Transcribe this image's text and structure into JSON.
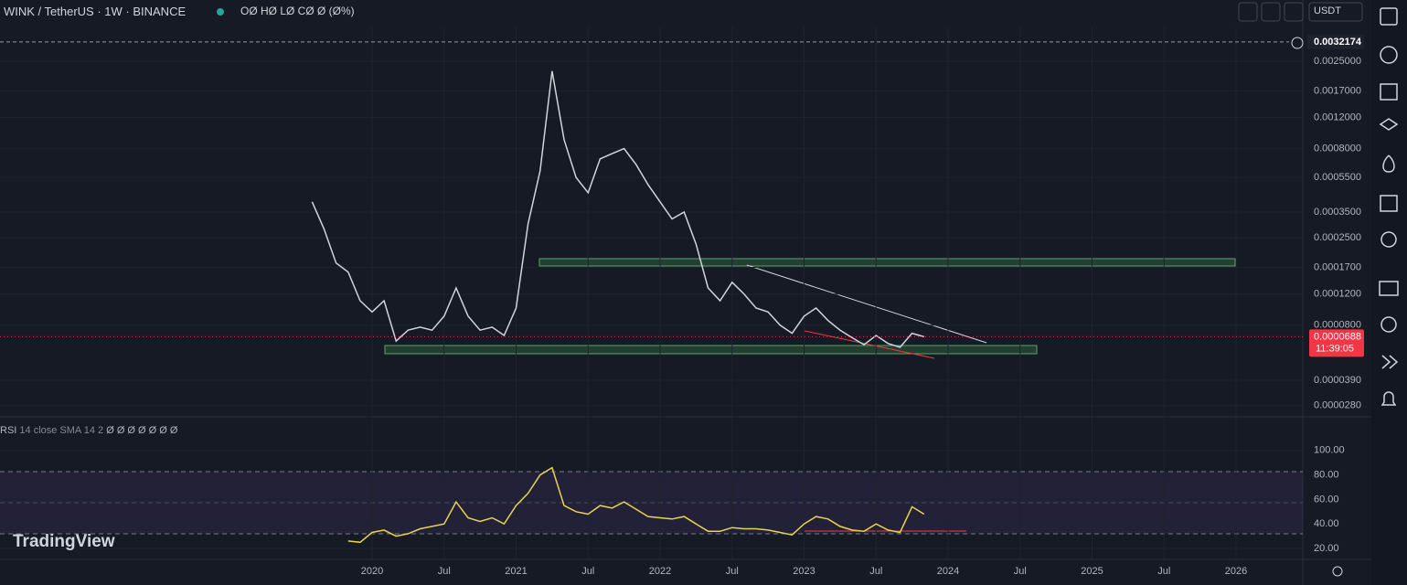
{
  "header": {
    "symbol": "WINK / TetherUS · 1W · BINANCE",
    "ohlc": "OØ HØ LØ CØ Ø (Ø%)",
    "currency": "USDT"
  },
  "chart_data": [
    {
      "type": "line",
      "title": "WINK / TetherUS · 1W · BINANCE",
      "log_scale": true,
      "color": "#d1d4dc",
      "x": [
        "2019-08",
        "2019-09",
        "2019-10",
        "2019-11",
        "2019-12",
        "2020-01",
        "2020-02",
        "2020-03",
        "2020-04",
        "2020-05",
        "2020-06",
        "2020-07",
        "2020-08",
        "2020-09",
        "2020-10",
        "2020-11",
        "2020-12",
        "2021-01",
        "2021-02",
        "2021-03",
        "2021-04",
        "2021-05",
        "2021-06",
        "2021-07",
        "2021-08",
        "2021-09",
        "2021-10",
        "2021-11",
        "2021-12",
        "2022-01",
        "2022-02",
        "2022-03",
        "2022-04",
        "2022-05",
        "2022-06",
        "2022-07",
        "2022-08",
        "2022-09",
        "2022-10",
        "2022-11",
        "2022-12",
        "2023-01",
        "2023-02",
        "2023-03",
        "2023-04",
        "2023-05",
        "2023-06",
        "2023-07",
        "2023-08",
        "2023-09",
        "2023-10",
        "2023-11"
      ],
      "values": [
        0.0004,
        0.00028,
        0.00018,
        0.00016,
        0.00011,
        9.5e-05,
        0.00011,
        6.5e-05,
        7.5e-05,
        7.8e-05,
        7.5e-05,
        9e-05,
        0.00013,
        9e-05,
        7.5e-05,
        7.8e-05,
        7e-05,
        0.0001,
        0.0003,
        0.0006,
        0.0022,
        0.0009,
        0.00055,
        0.00045,
        0.0007,
        0.00075,
        0.0008,
        0.00065,
        0.0005,
        0.0004,
        0.00032,
        0.00035,
        0.00023,
        0.00013,
        0.00011,
        0.00014,
        0.00012,
        0.0001,
        9.5e-05,
        8e-05,
        7.2e-05,
        9e-05,
        0.0001,
        8.5e-05,
        7.5e-05,
        6.8e-05,
        6.2e-05,
        7e-05,
        6.3e-05,
        6e-05,
        7.2e-05,
        6.88e-05
      ],
      "ylim": [
        2.45e-05,
        0.00389
      ],
      "yticks": [
        {
          "value": 0.0025,
          "label": "0.0025000"
        },
        {
          "value": 0.0017,
          "label": "0.0017000"
        },
        {
          "value": 0.0012,
          "label": "0.0012000"
        },
        {
          "value": 0.0008,
          "label": "0.0008000"
        },
        {
          "value": 0.00055,
          "label": "0.0005500"
        },
        {
          "value": 0.00035,
          "label": "0.0003500"
        },
        {
          "value": 0.00025,
          "label": "0.0002500"
        },
        {
          "value": 0.00017,
          "label": "0.0001700"
        },
        {
          "value": 0.00012,
          "label": "0.0001200"
        },
        {
          "value": 8e-05,
          "label": "0.0000800"
        },
        {
          "value": 3.9e-05,
          "label": "0.0000390"
        },
        {
          "value": 2.8e-05,
          "label": "0.0000280"
        }
      ],
      "xticks": [
        {
          "value": "2020-01",
          "label": "2020"
        },
        {
          "value": "2020-07",
          "label": "Jul"
        },
        {
          "value": "2021-01",
          "label": "2021"
        },
        {
          "value": "2021-07",
          "label": "Jul"
        },
        {
          "value": "2022-01",
          "label": "2022"
        },
        {
          "value": "2022-07",
          "label": "Jul"
        },
        {
          "value": "2023-01",
          "label": "2023"
        },
        {
          "value": "2023-07",
          "label": "Jul"
        },
        {
          "value": "2024-01",
          "label": "2024"
        },
        {
          "value": "2024-07",
          "label": "Jul"
        },
        {
          "value": "2025-01",
          "label": "2025"
        },
        {
          "value": "2025-07",
          "label": "Jul"
        },
        {
          "value": "2026-01",
          "label": "2026"
        }
      ],
      "high_marker": 0.0032174,
      "last_price": 6.88e-05,
      "countdown": "11:39:05"
    },
    {
      "type": "line",
      "title": "RSI",
      "subtitle": "14 close SMA 14 2",
      "readout": "Ø Ø Ø Ø Ø Ø Ø",
      "color": "#e8d44d",
      "x": [
        "2019-08",
        "2019-09",
        "2019-10",
        "2019-11",
        "2019-12",
        "2020-01",
        "2020-02",
        "2020-03",
        "2020-04",
        "2020-05",
        "2020-06",
        "2020-07",
        "2020-08",
        "2020-09",
        "2020-10",
        "2020-11",
        "2020-12",
        "2021-01",
        "2021-02",
        "2021-03",
        "2021-04",
        "2021-05",
        "2021-06",
        "2021-07",
        "2021-08",
        "2021-09",
        "2021-10",
        "2021-11",
        "2021-12",
        "2022-01",
        "2022-02",
        "2022-03",
        "2022-04",
        "2022-05",
        "2022-06",
        "2022-07",
        "2022-08",
        "2022-09",
        "2022-10",
        "2022-11",
        "2022-12",
        "2023-01",
        "2023-02",
        "2023-03",
        "2023-04",
        "2023-05",
        "2023-06",
        "2023-07",
        "2023-08",
        "2023-09",
        "2023-10",
        "2023-11"
      ],
      "values": [
        null,
        null,
        null,
        26,
        25,
        33,
        35,
        30,
        32,
        36,
        38,
        40,
        58,
        45,
        42,
        45,
        40,
        55,
        65,
        80,
        86,
        55,
        50,
        48,
        55,
        53,
        58,
        52,
        46,
        45,
        44,
        46,
        40,
        34,
        34,
        37,
        36,
        36,
        35,
        33,
        31,
        40,
        46,
        44,
        38,
        35,
        34,
        40,
        35,
        33,
        54,
        48
      ],
      "ylim": [
        12.5,
        126
      ],
      "yticks": [
        {
          "value": 100,
          "label": "100.00"
        },
        {
          "value": 80,
          "label": "80.00"
        },
        {
          "value": 60,
          "label": "60.00"
        },
        {
          "value": 40,
          "label": "40.00"
        },
        {
          "value": 20,
          "label": "20.00"
        }
      ]
    }
  ],
  "branding": "TradingView"
}
